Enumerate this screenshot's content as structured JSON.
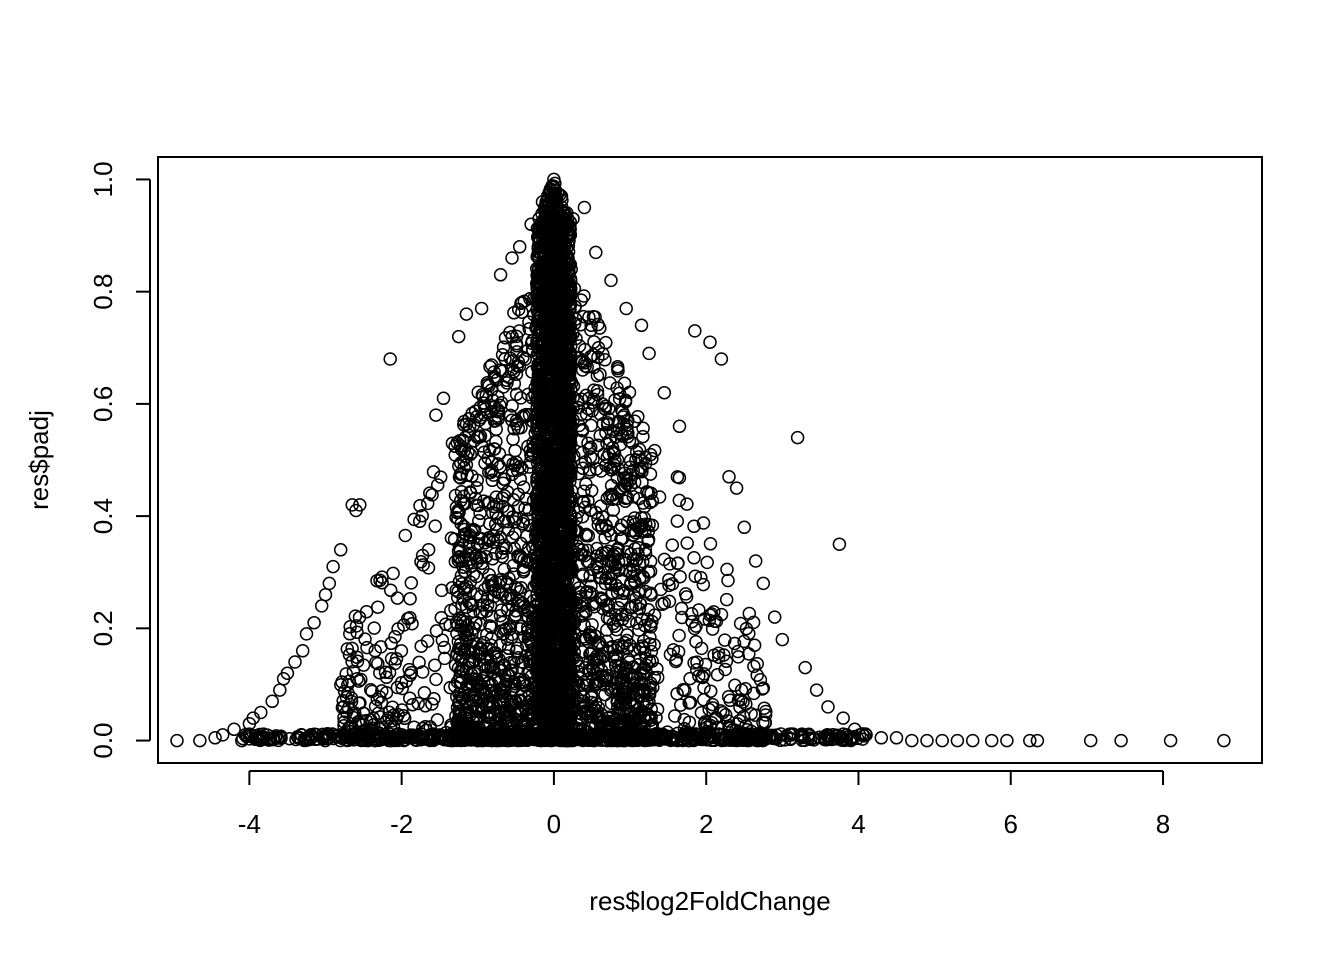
{
  "chart_data": {
    "type": "scatter",
    "title": "",
    "xlabel": "res$log2FoldChange",
    "ylabel": "res$padj",
    "xlim": [
      -5.2,
      9.3
    ],
    "ylim": [
      -0.04,
      1.04
    ],
    "x_ticks": [
      -4,
      -2,
      0,
      2,
      4,
      6,
      8
    ],
    "x_tick_labels": [
      "-4",
      "-2",
      "0",
      "2",
      "4",
      "6",
      "8"
    ],
    "y_ticks": [
      0.0,
      0.2,
      0.4,
      0.6,
      0.8,
      1.0
    ],
    "y_tick_labels": [
      "0.0",
      "0.2",
      "0.4",
      "0.6",
      "0.8",
      "1.0"
    ],
    "grid": false,
    "legend": "none",
    "marker": "open-circle",
    "colors": {
      "marker": "#000000",
      "axis": "#000000",
      "background": "#ffffff"
    },
    "points": [
      [
        -4.95,
        0.0
      ],
      [
        -4.65,
        0.0
      ],
      [
        -4.45,
        0.005
      ],
      [
        -4.35,
        0.01
      ],
      [
        -4.2,
        0.02
      ],
      [
        -4.1,
        0.0
      ],
      [
        -4.0,
        0.03
      ],
      [
        -3.95,
        0.04
      ],
      [
        -3.85,
        0.05
      ],
      [
        -3.7,
        0.07
      ],
      [
        -3.6,
        0.09
      ],
      [
        -3.55,
        0.11
      ],
      [
        -3.5,
        0.12
      ],
      [
        -3.4,
        0.14
      ],
      [
        -3.3,
        0.16
      ],
      [
        -3.25,
        0.19
      ],
      [
        -3.15,
        0.21
      ],
      [
        -3.05,
        0.24
      ],
      [
        -3.0,
        0.26
      ],
      [
        -2.95,
        0.28
      ],
      [
        -2.9,
        0.31
      ],
      [
        -2.8,
        0.34
      ],
      [
        -2.65,
        0.42
      ],
      [
        -2.6,
        0.41
      ],
      [
        -2.55,
        0.42
      ],
      [
        -2.15,
        0.68
      ],
      [
        -1.55,
        0.58
      ],
      [
        -1.45,
        0.61
      ],
      [
        -1.25,
        0.72
      ],
      [
        -1.15,
        0.76
      ],
      [
        -0.95,
        0.77
      ],
      [
        -0.7,
        0.83
      ],
      [
        -0.55,
        0.86
      ],
      [
        -0.45,
        0.88
      ],
      [
        -0.3,
        0.92
      ],
      [
        -0.15,
        0.96
      ],
      [
        0.0,
        1.0
      ],
      [
        0.1,
        0.97
      ],
      [
        0.25,
        0.93
      ],
      [
        0.4,
        0.95
      ],
      [
        0.55,
        0.87
      ],
      [
        0.75,
        0.82
      ],
      [
        0.95,
        0.77
      ],
      [
        1.15,
        0.74
      ],
      [
        1.25,
        0.69
      ],
      [
        1.45,
        0.62
      ],
      [
        1.65,
        0.56
      ],
      [
        1.85,
        0.73
      ],
      [
        2.05,
        0.71
      ],
      [
        2.2,
        0.68
      ],
      [
        2.3,
        0.47
      ],
      [
        2.4,
        0.45
      ],
      [
        2.5,
        0.38
      ],
      [
        2.65,
        0.32
      ],
      [
        2.75,
        0.28
      ],
      [
        2.9,
        0.22
      ],
      [
        3.0,
        0.18
      ],
      [
        3.2,
        0.54
      ],
      [
        3.3,
        0.13
      ],
      [
        3.45,
        0.09
      ],
      [
        3.6,
        0.06
      ],
      [
        3.75,
        0.35
      ],
      [
        3.8,
        0.04
      ],
      [
        3.95,
        0.02
      ],
      [
        4.1,
        0.01
      ],
      [
        4.3,
        0.005
      ],
      [
        4.5,
        0.005
      ],
      [
        4.7,
        0.0
      ],
      [
        4.9,
        0.0
      ],
      [
        5.1,
        0.0
      ],
      [
        5.3,
        0.0
      ],
      [
        5.5,
        0.0
      ],
      [
        5.75,
        0.0
      ],
      [
        5.95,
        0.0
      ],
      [
        6.25,
        0.0
      ],
      [
        6.35,
        0.0
      ],
      [
        7.05,
        0.0
      ],
      [
        7.45,
        0.0
      ],
      [
        8.1,
        0.0
      ],
      [
        8.8,
        0.0
      ]
    ],
    "density_model": {
      "count": 5200,
      "center_x": 0.0,
      "upper_bound": "y <= 1 - 0.26 * |x|",
      "concentration": "heavy near x = 0 and y = 0"
    }
  }
}
